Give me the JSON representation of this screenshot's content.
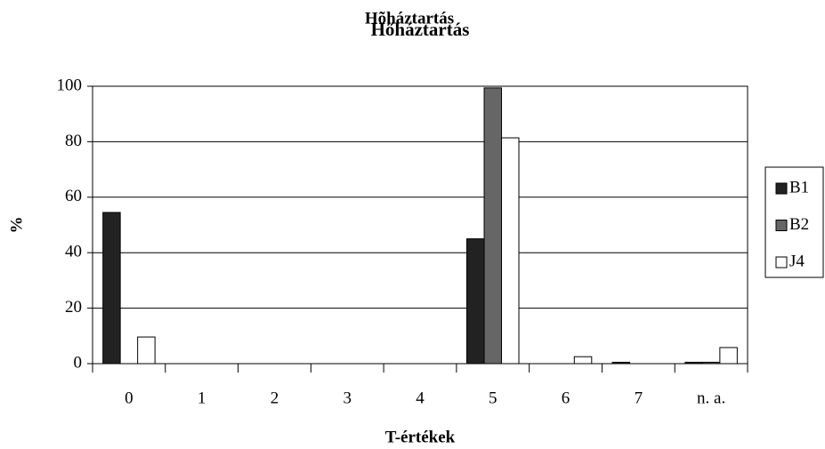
{
  "chart_data": {
    "type": "bar",
    "title": "Hőháztartás",
    "title_overlay": "Hõháztartás",
    "categories": [
      "0",
      "1",
      "2",
      "3",
      "4",
      "5",
      "6",
      "7",
      "n. a."
    ],
    "series": [
      {
        "name": "B1",
        "color": "#222222",
        "values": [
          54.5,
          0,
          0,
          0,
          0,
          45,
          0,
          0.5,
          0.5
        ]
      },
      {
        "name": "B2",
        "color": "#666666",
        "values": [
          0,
          0,
          0,
          0,
          0,
          99.4,
          0,
          0,
          0.5
        ]
      },
      {
        "name": "J4",
        "color": "#ffffff",
        "values": [
          9.6,
          0,
          0,
          0,
          0,
          81.4,
          2.5,
          0,
          5.8
        ]
      }
    ],
    "ylabel": "%",
    "xlabel": "T-értékek",
    "ylim": [
      0,
      100
    ],
    "yticks": [
      0,
      20,
      40,
      60,
      80,
      100
    ],
    "grid": true,
    "legend": "right"
  }
}
